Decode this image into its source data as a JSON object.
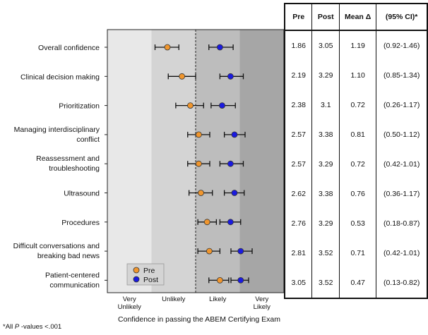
{
  "chart_data": {
    "type": "forest-dot",
    "xlabel": "Confidence in passing the ABEM Certifying Exam",
    "xlim": [
      0.5,
      4.5
    ],
    "x_ticks": [
      {
        "value": 1,
        "lines": [
          "Very",
          "Unlikely"
        ]
      },
      {
        "value": 2,
        "lines": [
          "Unlikely"
        ]
      },
      {
        "value": 3,
        "lines": [
          "Likely"
        ]
      },
      {
        "value": 4,
        "lines": [
          "Very",
          "Likely"
        ]
      }
    ],
    "reference_line": 2.5,
    "legend": [
      {
        "name": "Pre",
        "color": "#F0962E"
      },
      {
        "name": "Post",
        "color": "#1A1AE0"
      }
    ],
    "categories": [
      [
        "Overall confidence"
      ],
      [
        "Clinical decision making"
      ],
      [
        "Prioritization"
      ],
      [
        "Managing interdisciplinary",
        "conflict"
      ],
      [
        "Reassessment and",
        "troubleshooting"
      ],
      [
        "Ultrasound"
      ],
      [
        "Procedures"
      ],
      [
        "Difficult conversations and",
        "breaking bad news"
      ],
      [
        "Patient-centered",
        "communication"
      ]
    ],
    "series": [
      {
        "name": "Pre",
        "color": "#F0962E",
        "values": [
          1.86,
          2.19,
          2.38,
          2.57,
          2.57,
          2.62,
          2.76,
          2.81,
          3.05
        ],
        "lower": [
          1.58,
          1.88,
          2.05,
          2.32,
          2.32,
          2.35,
          2.55,
          2.55,
          2.8
        ],
        "upper": [
          2.12,
          2.5,
          2.68,
          2.82,
          2.82,
          2.88,
          2.97,
          3.05,
          3.25
        ]
      },
      {
        "name": "Post",
        "color": "#1A1AE0",
        "values": [
          3.05,
          3.29,
          3.1,
          3.38,
          3.29,
          3.38,
          3.29,
          3.52,
          3.52
        ],
        "lower": [
          2.8,
          3.05,
          2.85,
          3.15,
          3.05,
          3.15,
          3.05,
          3.3,
          3.3
        ],
        "upper": [
          3.35,
          3.58,
          3.4,
          3.62,
          3.58,
          3.6,
          3.52,
          3.78,
          3.7
        ]
      }
    ]
  },
  "table": {
    "headers": [
      "Pre",
      "Post",
      "Mean Δ",
      "(95% CI)*"
    ],
    "rows": [
      [
        "1.86",
        "3.05",
        "1.19",
        "(0.92-1.46)"
      ],
      [
        "2.19",
        "3.29",
        "1.10",
        "(0.85-1.34)"
      ],
      [
        "2.38",
        "3.1",
        "0.72",
        "(0.26-1.17)"
      ],
      [
        "2.57",
        "3.38",
        "0.81",
        "(0.50-1.12)"
      ],
      [
        "2.57",
        "3.29",
        "0.72",
        "(0.42-1.01)"
      ],
      [
        "2.62",
        "3.38",
        "0.76",
        "(0.36-1.17)"
      ],
      [
        "2.76",
        "3.29",
        "0.53",
        "(0.18-0.87)"
      ],
      [
        "2.81",
        "3.52",
        "0.71",
        "(0.42-1.01)"
      ],
      [
        "3.05",
        "3.52",
        "0.47",
        "(0.13-0.82)"
      ]
    ]
  },
  "footnote": {
    "prefix": "*All ",
    "italic": "P",
    "suffix": " -values <.001"
  }
}
